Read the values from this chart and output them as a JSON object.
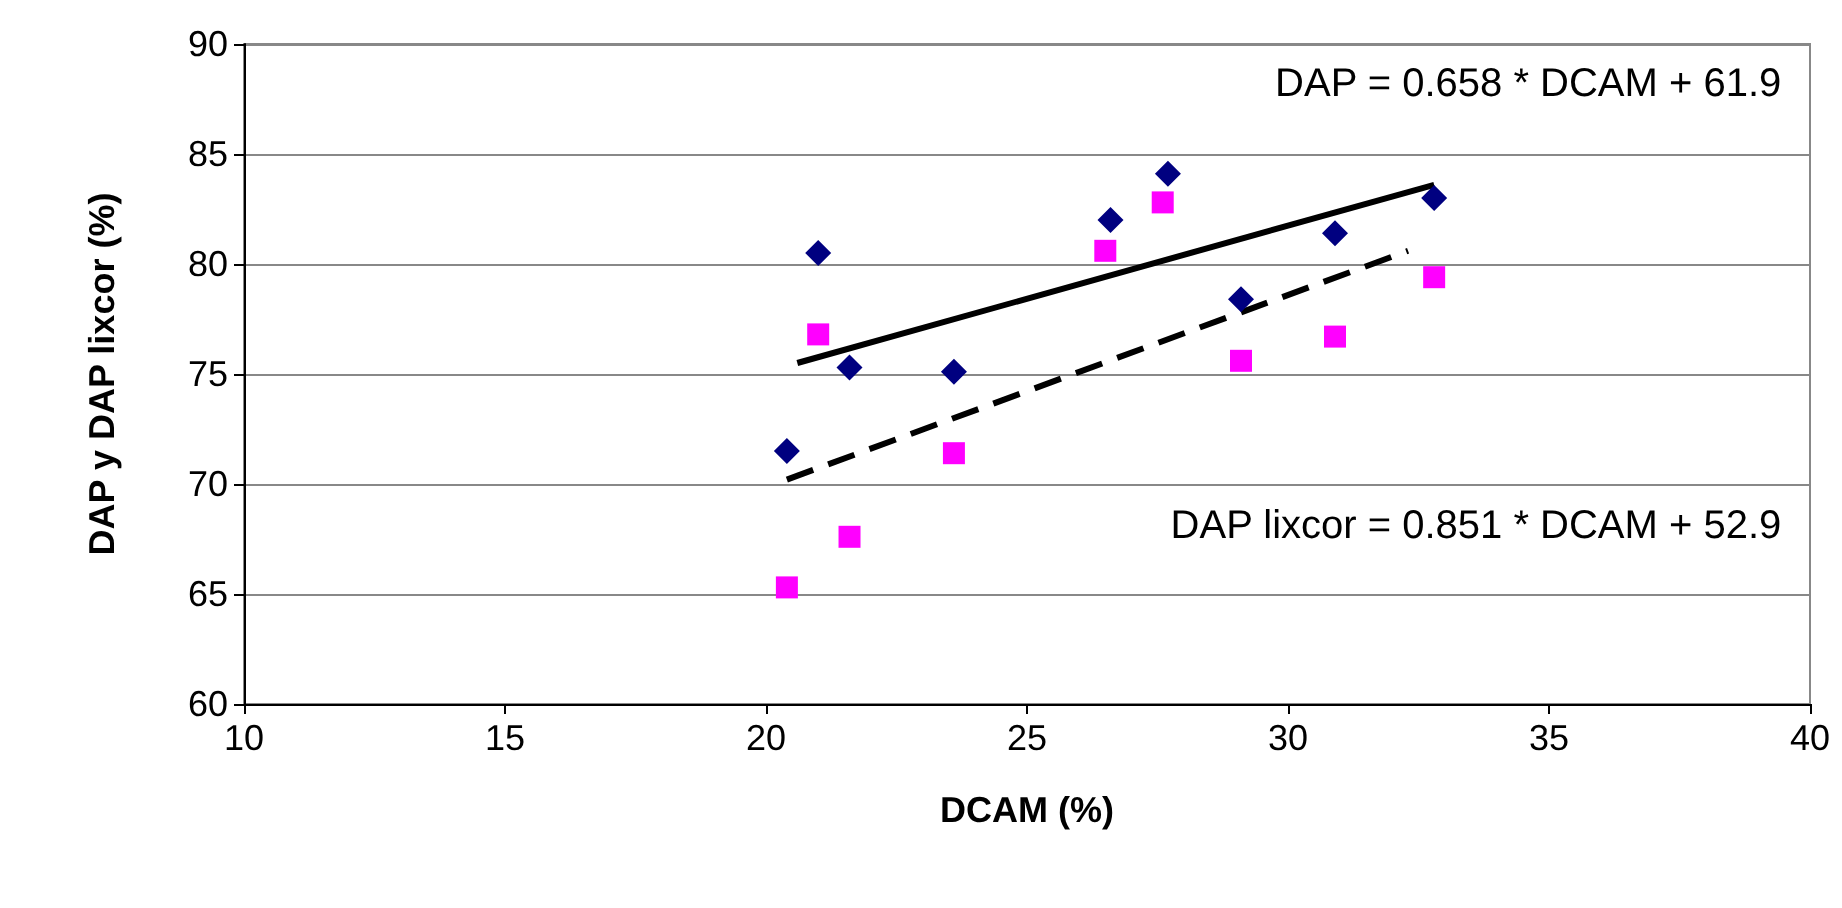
{
  "chart_data": {
    "type": "scatter",
    "xlabel": "DCAM (%)",
    "ylabel": "DAP y DAP lixcor (%)",
    "xlim": [
      10,
      40
    ],
    "xticks": [
      10,
      15,
      20,
      25,
      30,
      35,
      40
    ],
    "ylim": [
      60,
      90
    ],
    "yticks": [
      60,
      65,
      70,
      75,
      80,
      85,
      90
    ],
    "grid": "y",
    "annotations": [
      "DAP = 0.658 * DCAM + 61.9",
      "DAP lixcor = 0.851 * DCAM + 52.9"
    ],
    "series": [
      {
        "color": "#000080",
        "marker": "diamond",
        "x": [
          20.4,
          21.0,
          21.6,
          23.6,
          26.6,
          27.7,
          29.1,
          30.9,
          32.8
        ],
        "values": [
          71.5,
          80.5,
          75.3,
          75.1,
          82.0,
          84.1,
          78.4,
          81.4,
          83.0
        ]
      },
      {
        "color": "#ff00ff",
        "marker": "square",
        "x": [
          20.4,
          21.0,
          21.6,
          23.6,
          26.5,
          27.6,
          29.1,
          30.9,
          32.8
        ],
        "values": [
          65.3,
          76.8,
          67.6,
          71.4,
          80.6,
          82.8,
          75.6,
          76.7,
          79.4
        ]
      },
      {
        "type": "line",
        "color": "#000000",
        "marker": "none",
        "line_style": "solid",
        "x": [
          20.6,
          32.8
        ],
        "values": [
          75.5,
          83.6
        ]
      },
      {
        "type": "line",
        "color": "#000000",
        "marker": "none",
        "line_style": "dashed",
        "x": [
          20.4,
          32.3
        ],
        "values": [
          70.2,
          80.6
        ]
      }
    ]
  }
}
